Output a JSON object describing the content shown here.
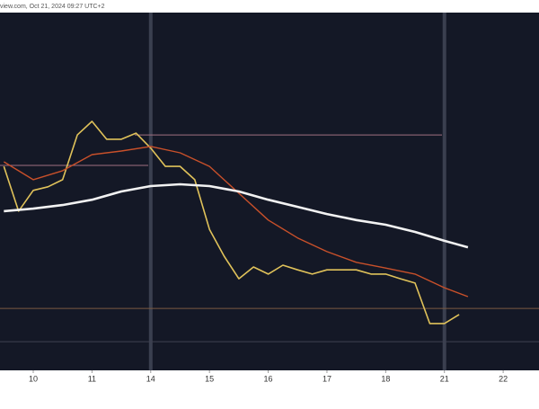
{
  "header": {
    "text": "view.com, Oct 21, 2024 09:27 UTC+2"
  },
  "chart_data": {
    "type": "line",
    "xlim": [
      -0.566,
      8.61
    ],
    "ylim": [
      0,
      100
    ],
    "xticks": [
      {
        "value": 0,
        "label": "10"
      },
      {
        "value": 1,
        "label": "11"
      },
      {
        "value": 2,
        "label": "14"
      },
      {
        "value": 3,
        "label": "15"
      },
      {
        "value": 4,
        "label": "16"
      },
      {
        "value": 5,
        "label": "17"
      },
      {
        "value": 6,
        "label": "18"
      },
      {
        "value": 7,
        "label": "21"
      },
      {
        "value": 8,
        "label": "22"
      }
    ],
    "separators": [
      2,
      7
    ],
    "levels": [
      65.8,
      57.3,
      17.3,
      8.0
    ],
    "series": [
      {
        "color": "#e0c25a",
        "x": [
          -0.5,
          -0.25,
          0,
          0.25,
          0.5,
          0.75,
          1,
          1.25,
          1.5,
          1.75,
          2,
          2.25,
          2.5,
          2.75,
          3,
          3.25,
          3.5,
          3.75,
          4,
          4.25,
          4.5,
          4.75,
          5,
          5.25,
          5.5,
          5.75,
          6,
          6.25,
          6.5,
          6.75,
          7,
          7.25
        ],
        "values": [
          57.0,
          44.5,
          50.3,
          51.3,
          53.3,
          65.8,
          69.6,
          64.6,
          64.6,
          66.3,
          62.1,
          57.0,
          57.0,
          53.3,
          39.4,
          31.9,
          25.6,
          28.9,
          26.9,
          29.4,
          28.1,
          26.9,
          28.1,
          28.1,
          28.1,
          26.9,
          26.9,
          25.6,
          24.4,
          13.1,
          13.1,
          15.6
        ]
      },
      {
        "color": "#c8502a",
        "x": [
          -0.5,
          0,
          0.5,
          1,
          1.5,
          2,
          2.5,
          3,
          3.5,
          4,
          4.5,
          5,
          5.5,
          6,
          6.5,
          7,
          7.4
        ],
        "values": [
          58.3,
          53.3,
          55.8,
          60.3,
          61.3,
          62.6,
          60.8,
          57.0,
          49.5,
          42.0,
          37.0,
          33.2,
          30.2,
          28.6,
          26.9,
          23.1,
          20.6
        ]
      },
      {
        "color": "#f2f2f2",
        "x": [
          -0.5,
          0,
          0.5,
          1,
          1.5,
          2,
          2.5,
          3,
          3.5,
          4,
          4.5,
          5,
          5.5,
          6,
          6.5,
          7,
          7.4
        ],
        "values": [
          44.5,
          45.2,
          46.2,
          47.7,
          50.0,
          51.5,
          52.0,
          51.5,
          50.0,
          47.7,
          45.7,
          43.7,
          42.0,
          40.7,
          38.7,
          36.2,
          34.4
        ]
      }
    ]
  }
}
